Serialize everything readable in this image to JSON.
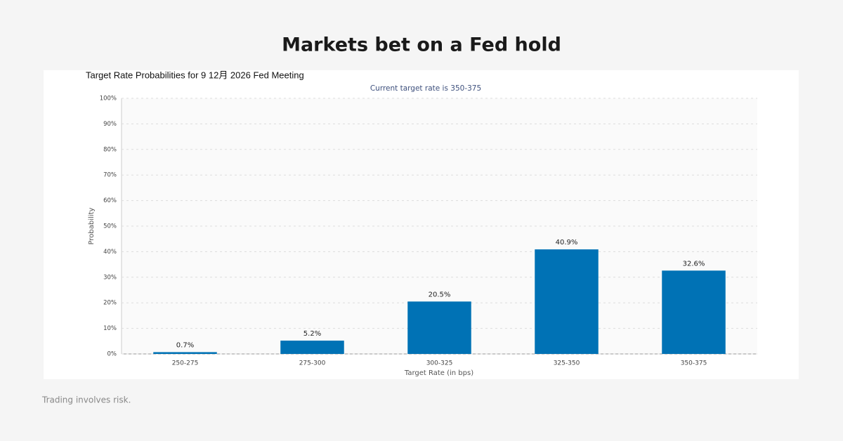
{
  "header": {
    "title": "Markets bet on a Fed hold"
  },
  "chart_data": {
    "type": "bar",
    "title": "Target Rate Probabilities for 9 12月 2026 Fed Meeting",
    "subtitle": "Current target rate is 350-375",
    "x_label": "Target Rate (in bps)",
    "y_label": "Probability",
    "categories": [
      "250-275",
      "275-300",
      "300-325",
      "325-350",
      "350-375"
    ],
    "values": [
      0.7,
      5.2,
      20.5,
      40.9,
      32.6
    ],
    "value_labels": [
      "0.7%",
      "5.2%",
      "20.5%",
      "40.9%",
      "32.6%"
    ],
    "color": "#0072b5",
    "ylim": [
      0,
      100
    ],
    "yticks": [
      {
        "value": 0,
        "label": "0%"
      },
      {
        "value": 10,
        "label": "10%"
      },
      {
        "value": 20,
        "label": "20%"
      },
      {
        "value": 30,
        "label": "30%"
      },
      {
        "value": 40,
        "label": "40%"
      },
      {
        "value": 50,
        "label": "50%"
      },
      {
        "value": 60,
        "label": "60%"
      },
      {
        "value": 70,
        "label": "70%"
      },
      {
        "value": 80,
        "label": "80%"
      },
      {
        "value": 90,
        "label": "90%"
      },
      {
        "value": 100,
        "label": "100%"
      }
    ],
    "grid": true
  },
  "footer": {
    "disclaimer": "Trading involves risk."
  }
}
